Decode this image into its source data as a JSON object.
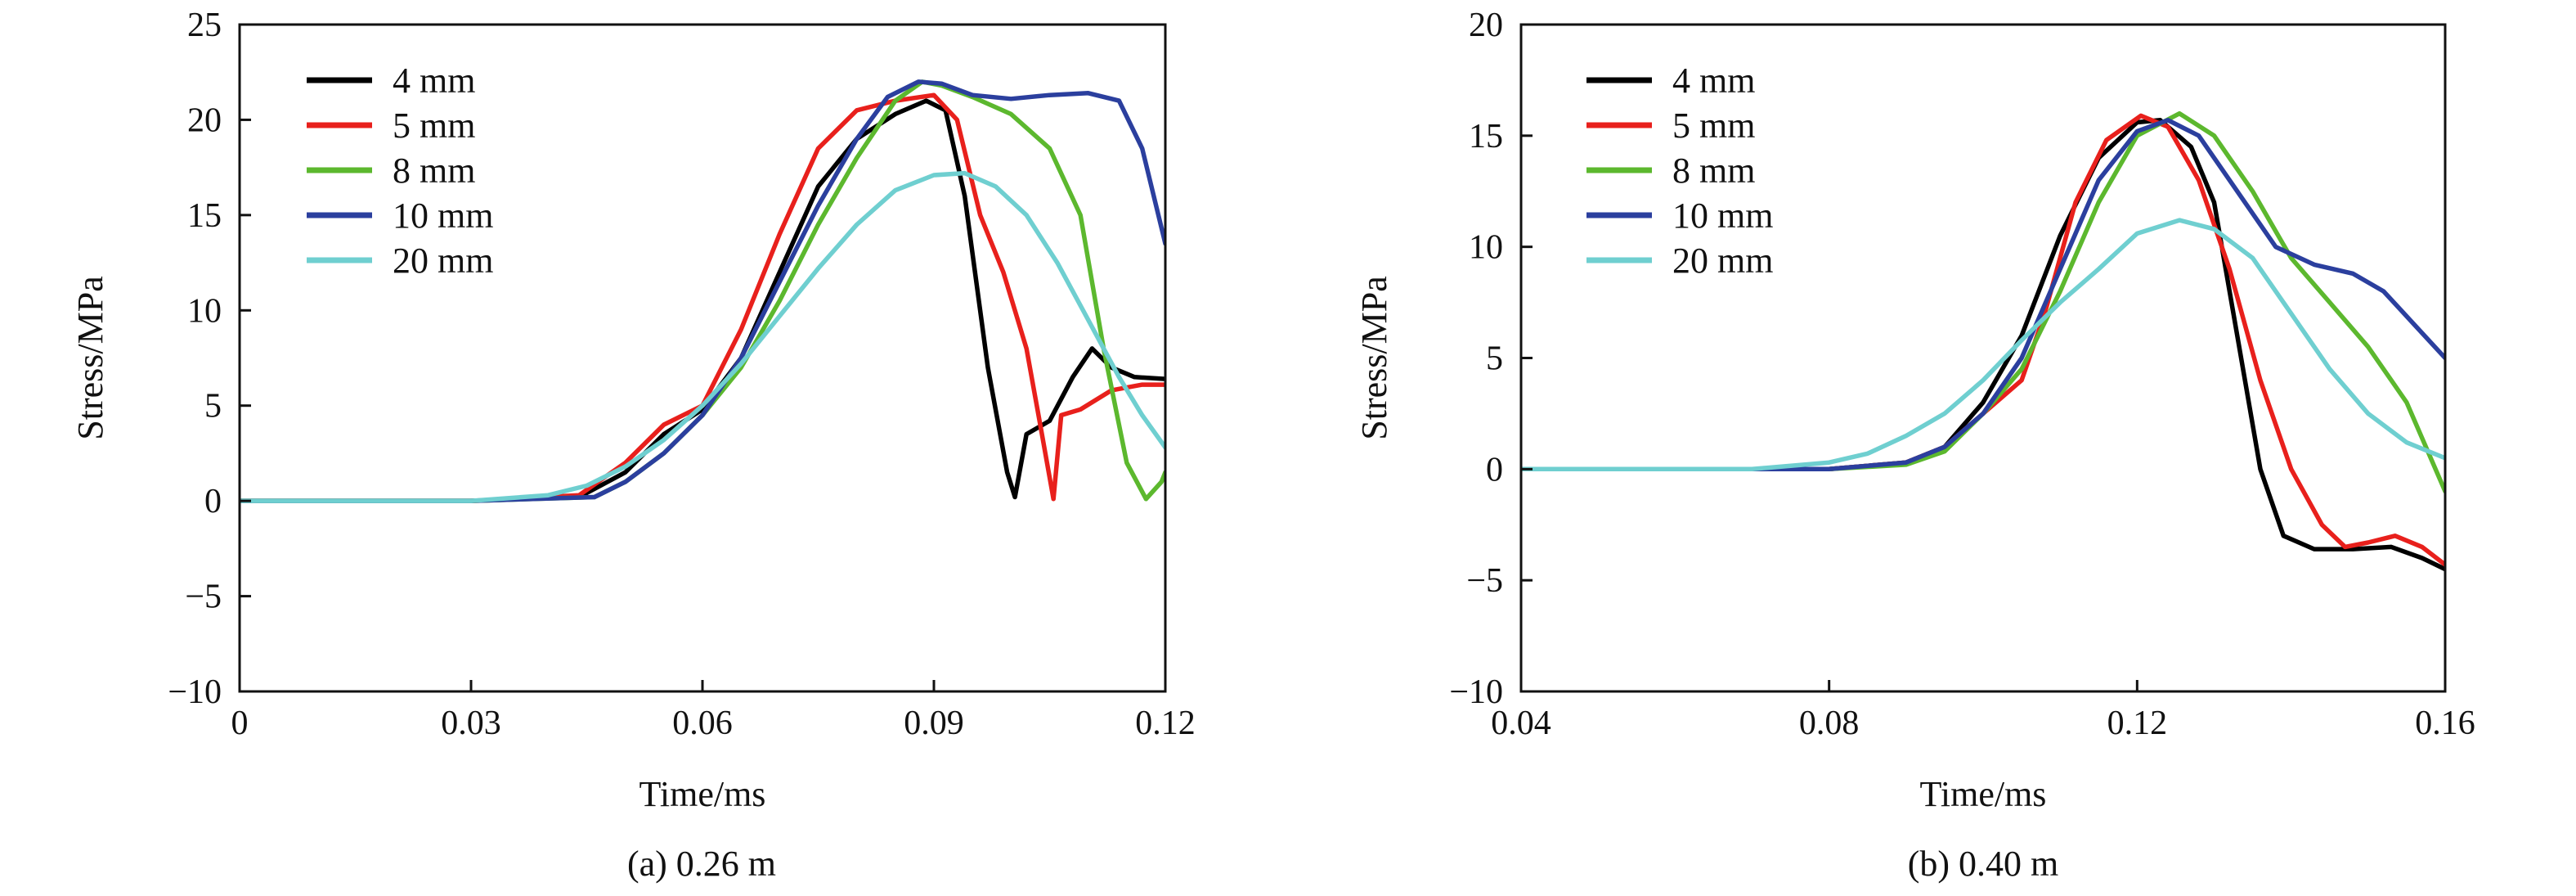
{
  "chart_data": [
    {
      "type": "line",
      "caption": "(a) 0.26 m",
      "xlabel": "Time/ms",
      "ylabel": "Stress/MPa",
      "xlim": [
        0,
        0.12
      ],
      "ylim": [
        -10,
        25
      ],
      "xticks": [
        0,
        0.03,
        0.06,
        0.09,
        0.12
      ],
      "xtick_labels": [
        "0",
        "0.03",
        "0.06",
        "0.09",
        "0.12"
      ],
      "yticks": [
        -10,
        -5,
        0,
        5,
        10,
        15,
        20,
        25
      ],
      "ytick_labels": [
        "−10",
        "−5",
        "0",
        "5",
        "10",
        "15",
        "20",
        "25"
      ],
      "legend_position": "top-left",
      "series": [
        {
          "name": "4 mm",
          "color": "#000000",
          "points": [
            [
              0,
              0
            ],
            [
              0.03,
              0
            ],
            [
              0.044,
              0.2
            ],
            [
              0.05,
              1.5
            ],
            [
              0.055,
              3.5
            ],
            [
              0.06,
              4.8
            ],
            [
              0.065,
              7.5
            ],
            [
              0.07,
              12
            ],
            [
              0.075,
              16.5
            ],
            [
              0.08,
              19
            ],
            [
              0.085,
              20.3
            ],
            [
              0.089,
              21
            ],
            [
              0.0915,
              20.5
            ],
            [
              0.094,
              16
            ],
            [
              0.097,
              7
            ],
            [
              0.0995,
              1.5
            ],
            [
              0.1005,
              0.2
            ],
            [
              0.102,
              3.5
            ],
            [
              0.105,
              4.2
            ],
            [
              0.108,
              6.5
            ],
            [
              0.1105,
              8
            ],
            [
              0.113,
              7
            ],
            [
              0.116,
              6.5
            ],
            [
              0.12,
              6.4
            ]
          ]
        },
        {
          "name": "5 mm",
          "color": "#e8201c",
          "points": [
            [
              0,
              0
            ],
            [
              0.03,
              0
            ],
            [
              0.044,
              0.3
            ],
            [
              0.05,
              2
            ],
            [
              0.055,
              4
            ],
            [
              0.06,
              5
            ],
            [
              0.065,
              9
            ],
            [
              0.07,
              14
            ],
            [
              0.075,
              18.5
            ],
            [
              0.08,
              20.5
            ],
            [
              0.085,
              21
            ],
            [
              0.09,
              21.3
            ],
            [
              0.093,
              20
            ],
            [
              0.096,
              15
            ],
            [
              0.099,
              12
            ],
            [
              0.102,
              8
            ],
            [
              0.104,
              3.5
            ],
            [
              0.1055,
              0.1
            ],
            [
              0.1065,
              4.5
            ],
            [
              0.109,
              4.8
            ],
            [
              0.113,
              5.8
            ],
            [
              0.117,
              6.1
            ],
            [
              0.12,
              6.1
            ]
          ]
        },
        {
          "name": "8 mm",
          "color": "#5cb82e",
          "points": [
            [
              0,
              0
            ],
            [
              0.03,
              0
            ],
            [
              0.046,
              0.2
            ],
            [
              0.05,
              1
            ],
            [
              0.055,
              2.5
            ],
            [
              0.06,
              4.5
            ],
            [
              0.065,
              7
            ],
            [
              0.07,
              10.5
            ],
            [
              0.075,
              14.5
            ],
            [
              0.08,
              18
            ],
            [
              0.085,
              21
            ],
            [
              0.0885,
              22
            ],
            [
              0.091,
              21.8
            ],
            [
              0.095,
              21.2
            ],
            [
              0.1,
              20.3
            ],
            [
              0.105,
              18.5
            ],
            [
              0.109,
              15
            ],
            [
              0.112,
              8
            ],
            [
              0.115,
              2
            ],
            [
              0.1175,
              0.1
            ],
            [
              0.1195,
              1
            ],
            [
              0.12,
              1.5
            ]
          ]
        },
        {
          "name": "10 mm",
          "color": "#2b3f9e",
          "points": [
            [
              0,
              0
            ],
            [
              0.03,
              0
            ],
            [
              0.046,
              0.2
            ],
            [
              0.05,
              1
            ],
            [
              0.055,
              2.5
            ],
            [
              0.06,
              4.5
            ],
            [
              0.065,
              7.5
            ],
            [
              0.07,
              11.5
            ],
            [
              0.075,
              15.5
            ],
            [
              0.08,
              19
            ],
            [
              0.084,
              21.2
            ],
            [
              0.088,
              22
            ],
            [
              0.091,
              21.9
            ],
            [
              0.095,
              21.3
            ],
            [
              0.1,
              21.1
            ],
            [
              0.105,
              21.3
            ],
            [
              0.11,
              21.4
            ],
            [
              0.114,
              21
            ],
            [
              0.117,
              18.5
            ],
            [
              0.12,
              13.5
            ]
          ]
        },
        {
          "name": "20 mm",
          "color": "#6fcfd0",
          "points": [
            [
              0,
              0
            ],
            [
              0.03,
              0
            ],
            [
              0.04,
              0.3
            ],
            [
              0.045,
              0.8
            ],
            [
              0.05,
              1.8
            ],
            [
              0.055,
              3.2
            ],
            [
              0.06,
              5
            ],
            [
              0.065,
              7.2
            ],
            [
              0.07,
              9.7
            ],
            [
              0.075,
              12.2
            ],
            [
              0.08,
              14.5
            ],
            [
              0.085,
              16.3
            ],
            [
              0.09,
              17.1
            ],
            [
              0.094,
              17.2
            ],
            [
              0.098,
              16.5
            ],
            [
              0.102,
              15
            ],
            [
              0.106,
              12.5
            ],
            [
              0.11,
              9.5
            ],
            [
              0.114,
              6.5
            ],
            [
              0.117,
              4.5
            ],
            [
              0.12,
              2.8
            ]
          ]
        }
      ]
    },
    {
      "type": "line",
      "caption": "(b) 0.40 m",
      "xlabel": "Time/ms",
      "ylabel": "Stress/MPa",
      "xlim": [
        0.04,
        0.16
      ],
      "ylim": [
        -10,
        20
      ],
      "xticks": [
        0.04,
        0.08,
        0.12,
        0.16
      ],
      "xtick_labels": [
        "0.04",
        "0.08",
        "0.12",
        "0.16"
      ],
      "yticks": [
        -10,
        -5,
        0,
        5,
        10,
        15,
        20
      ],
      "ytick_labels": [
        "−10",
        "−5",
        "0",
        "5",
        "10",
        "15",
        "20"
      ],
      "legend_position": "top-left",
      "series": [
        {
          "name": "4 mm",
          "color": "#000000",
          "points": [
            [
              0.04,
              0
            ],
            [
              0.08,
              0
            ],
            [
              0.09,
              0.3
            ],
            [
              0.095,
              1
            ],
            [
              0.1,
              3
            ],
            [
              0.105,
              6
            ],
            [
              0.11,
              10.5
            ],
            [
              0.115,
              14
            ],
            [
              0.12,
              15.6
            ],
            [
              0.123,
              15.7
            ],
            [
              0.127,
              14.5
            ],
            [
              0.13,
              12
            ],
            [
              0.133,
              6
            ],
            [
              0.136,
              0
            ],
            [
              0.139,
              -3
            ],
            [
              0.143,
              -3.6
            ],
            [
              0.148,
              -3.6
            ],
            [
              0.153,
              -3.5
            ],
            [
              0.157,
              -4
            ],
            [
              0.16,
              -4.5
            ]
          ]
        },
        {
          "name": "5 mm",
          "color": "#e8201c",
          "points": [
            [
              0.04,
              0
            ],
            [
              0.08,
              0
            ],
            [
              0.09,
              0.3
            ],
            [
              0.095,
              1
            ],
            [
              0.1,
              2.5
            ],
            [
              0.105,
              4
            ],
            [
              0.108,
              7
            ],
            [
              0.112,
              12
            ],
            [
              0.116,
              14.8
            ],
            [
              0.1205,
              15.9
            ],
            [
              0.124,
              15.4
            ],
            [
              0.128,
              13
            ],
            [
              0.132,
              9
            ],
            [
              0.136,
              4
            ],
            [
              0.14,
              0
            ],
            [
              0.144,
              -2.5
            ],
            [
              0.147,
              -3.5
            ],
            [
              0.15,
              -3.3
            ],
            [
              0.1535,
              -3
            ],
            [
              0.157,
              -3.5
            ],
            [
              0.16,
              -4.3
            ]
          ]
        },
        {
          "name": "8 mm",
          "color": "#5cb82e",
          "points": [
            [
              0.04,
              0
            ],
            [
              0.08,
              0
            ],
            [
              0.09,
              0.2
            ],
            [
              0.095,
              0.8
            ],
            [
              0.1,
              2.5
            ],
            [
              0.105,
              4.5
            ],
            [
              0.11,
              8
            ],
            [
              0.115,
              12
            ],
            [
              0.12,
              15
            ],
            [
              0.1255,
              16
            ],
            [
              0.13,
              15
            ],
            [
              0.135,
              12.5
            ],
            [
              0.14,
              9.5
            ],
            [
              0.145,
              7.5
            ],
            [
              0.15,
              5.5
            ],
            [
              0.155,
              3
            ],
            [
              0.16,
              -1
            ]
          ]
        },
        {
          "name": "10 mm",
          "color": "#2b3f9e",
          "points": [
            [
              0.04,
              0
            ],
            [
              0.08,
              0
            ],
            [
              0.09,
              0.3
            ],
            [
              0.095,
              1
            ],
            [
              0.1,
              2.5
            ],
            [
              0.105,
              5
            ],
            [
              0.11,
              9
            ],
            [
              0.115,
              13
            ],
            [
              0.12,
              15.2
            ],
            [
              0.124,
              15.7
            ],
            [
              0.128,
              15
            ],
            [
              0.133,
              12.5
            ],
            [
              0.138,
              10
            ],
            [
              0.143,
              9.2
            ],
            [
              0.148,
              8.8
            ],
            [
              0.152,
              8
            ],
            [
              0.156,
              6.5
            ],
            [
              0.16,
              5
            ]
          ]
        },
        {
          "name": "20 mm",
          "color": "#6fcfd0",
          "points": [
            [
              0.04,
              0
            ],
            [
              0.07,
              0
            ],
            [
              0.08,
              0.3
            ],
            [
              0.085,
              0.7
            ],
            [
              0.09,
              1.5
            ],
            [
              0.095,
              2.5
            ],
            [
              0.1,
              4
            ],
            [
              0.105,
              5.8
            ],
            [
              0.11,
              7.5
            ],
            [
              0.115,
              9
            ],
            [
              0.12,
              10.6
            ],
            [
              0.1255,
              11.2
            ],
            [
              0.13,
              10.8
            ],
            [
              0.135,
              9.5
            ],
            [
              0.14,
              7
            ],
            [
              0.145,
              4.5
            ],
            [
              0.15,
              2.5
            ],
            [
              0.155,
              1.2
            ],
            [
              0.16,
              0.5
            ]
          ]
        }
      ]
    }
  ]
}
